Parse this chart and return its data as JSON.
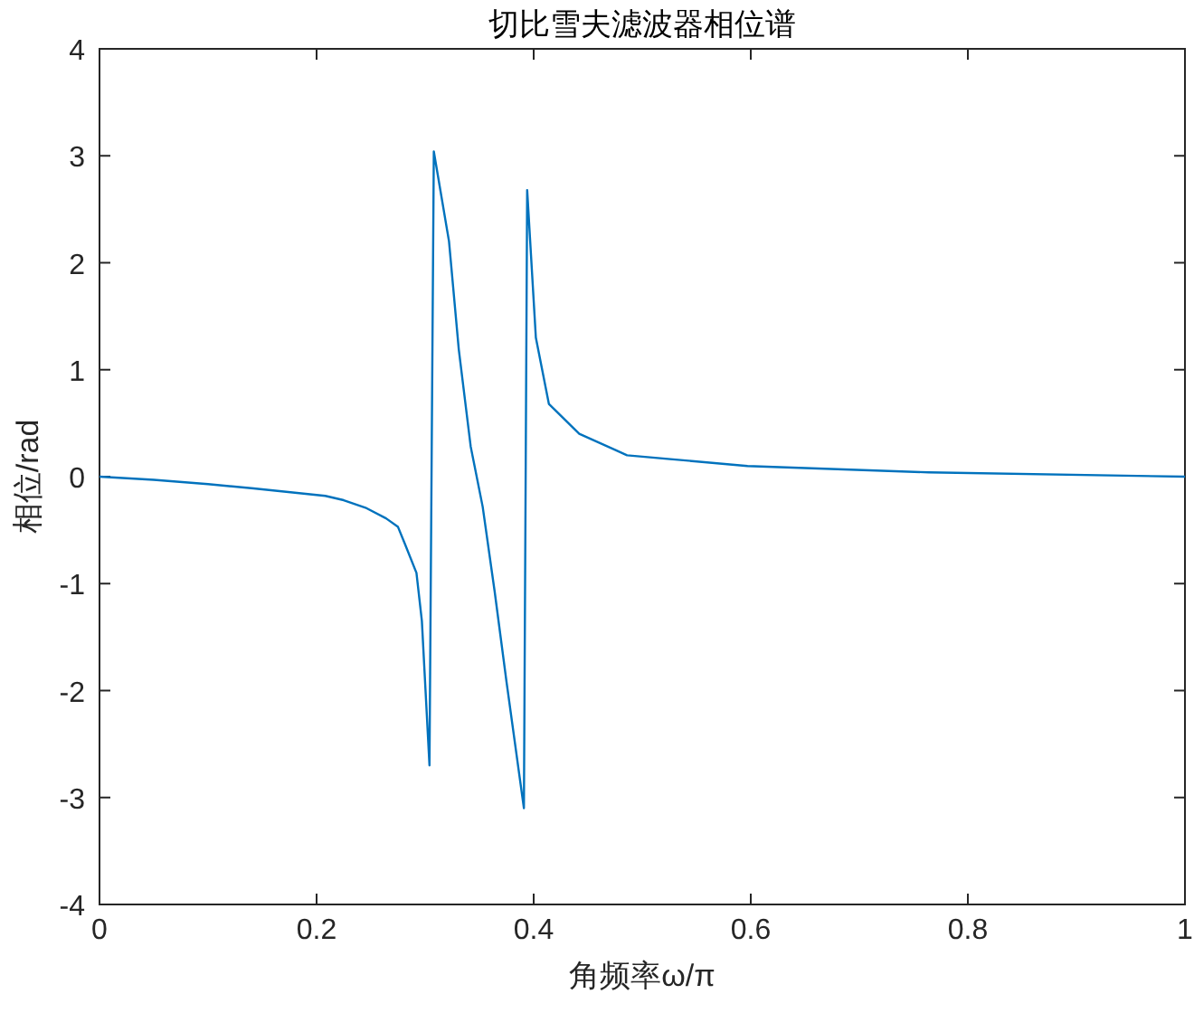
{
  "chart_data": {
    "type": "line",
    "title": "切比雪夫滤波器相位谱",
    "xlabel": "角频率ω/π",
    "ylabel": "相位/rad",
    "xlim": [
      0,
      1
    ],
    "ylim": [
      -4,
      4
    ],
    "xticks": [
      0,
      0.2,
      0.4,
      0.6,
      0.8,
      1
    ],
    "yticks": [
      -4,
      -3,
      -2,
      -1,
      0,
      1,
      2,
      3,
      4
    ],
    "grid": false,
    "series": [
      {
        "color": "#0072bd",
        "x": [
          0,
          0.05,
          0.1,
          0.142,
          0.18,
          0.208,
          0.225,
          0.245,
          0.264,
          0.275,
          0.281,
          0.292,
          0.297,
          0.304,
          0.308,
          0.322,
          0.331,
          0.342,
          0.353,
          0.364,
          0.375,
          0.391,
          0.394,
          0.402,
          0.414,
          0.442,
          0.475,
          0.486,
          0.597,
          0.764,
          1
        ],
        "values": [
          0,
          -0.03,
          -0.07,
          -0.11,
          -0.15,
          -0.18,
          -0.22,
          -0.29,
          -0.39,
          -0.47,
          -0.62,
          -0.9,
          -1.35,
          -2.7,
          3.04,
          2.2,
          1.19,
          0.28,
          -0.28,
          -1.07,
          -1.92,
          -3.1,
          2.68,
          1.3,
          0.68,
          0.4,
          0.25,
          0.2,
          0.1,
          0.04,
          0
        ]
      }
    ]
  }
}
